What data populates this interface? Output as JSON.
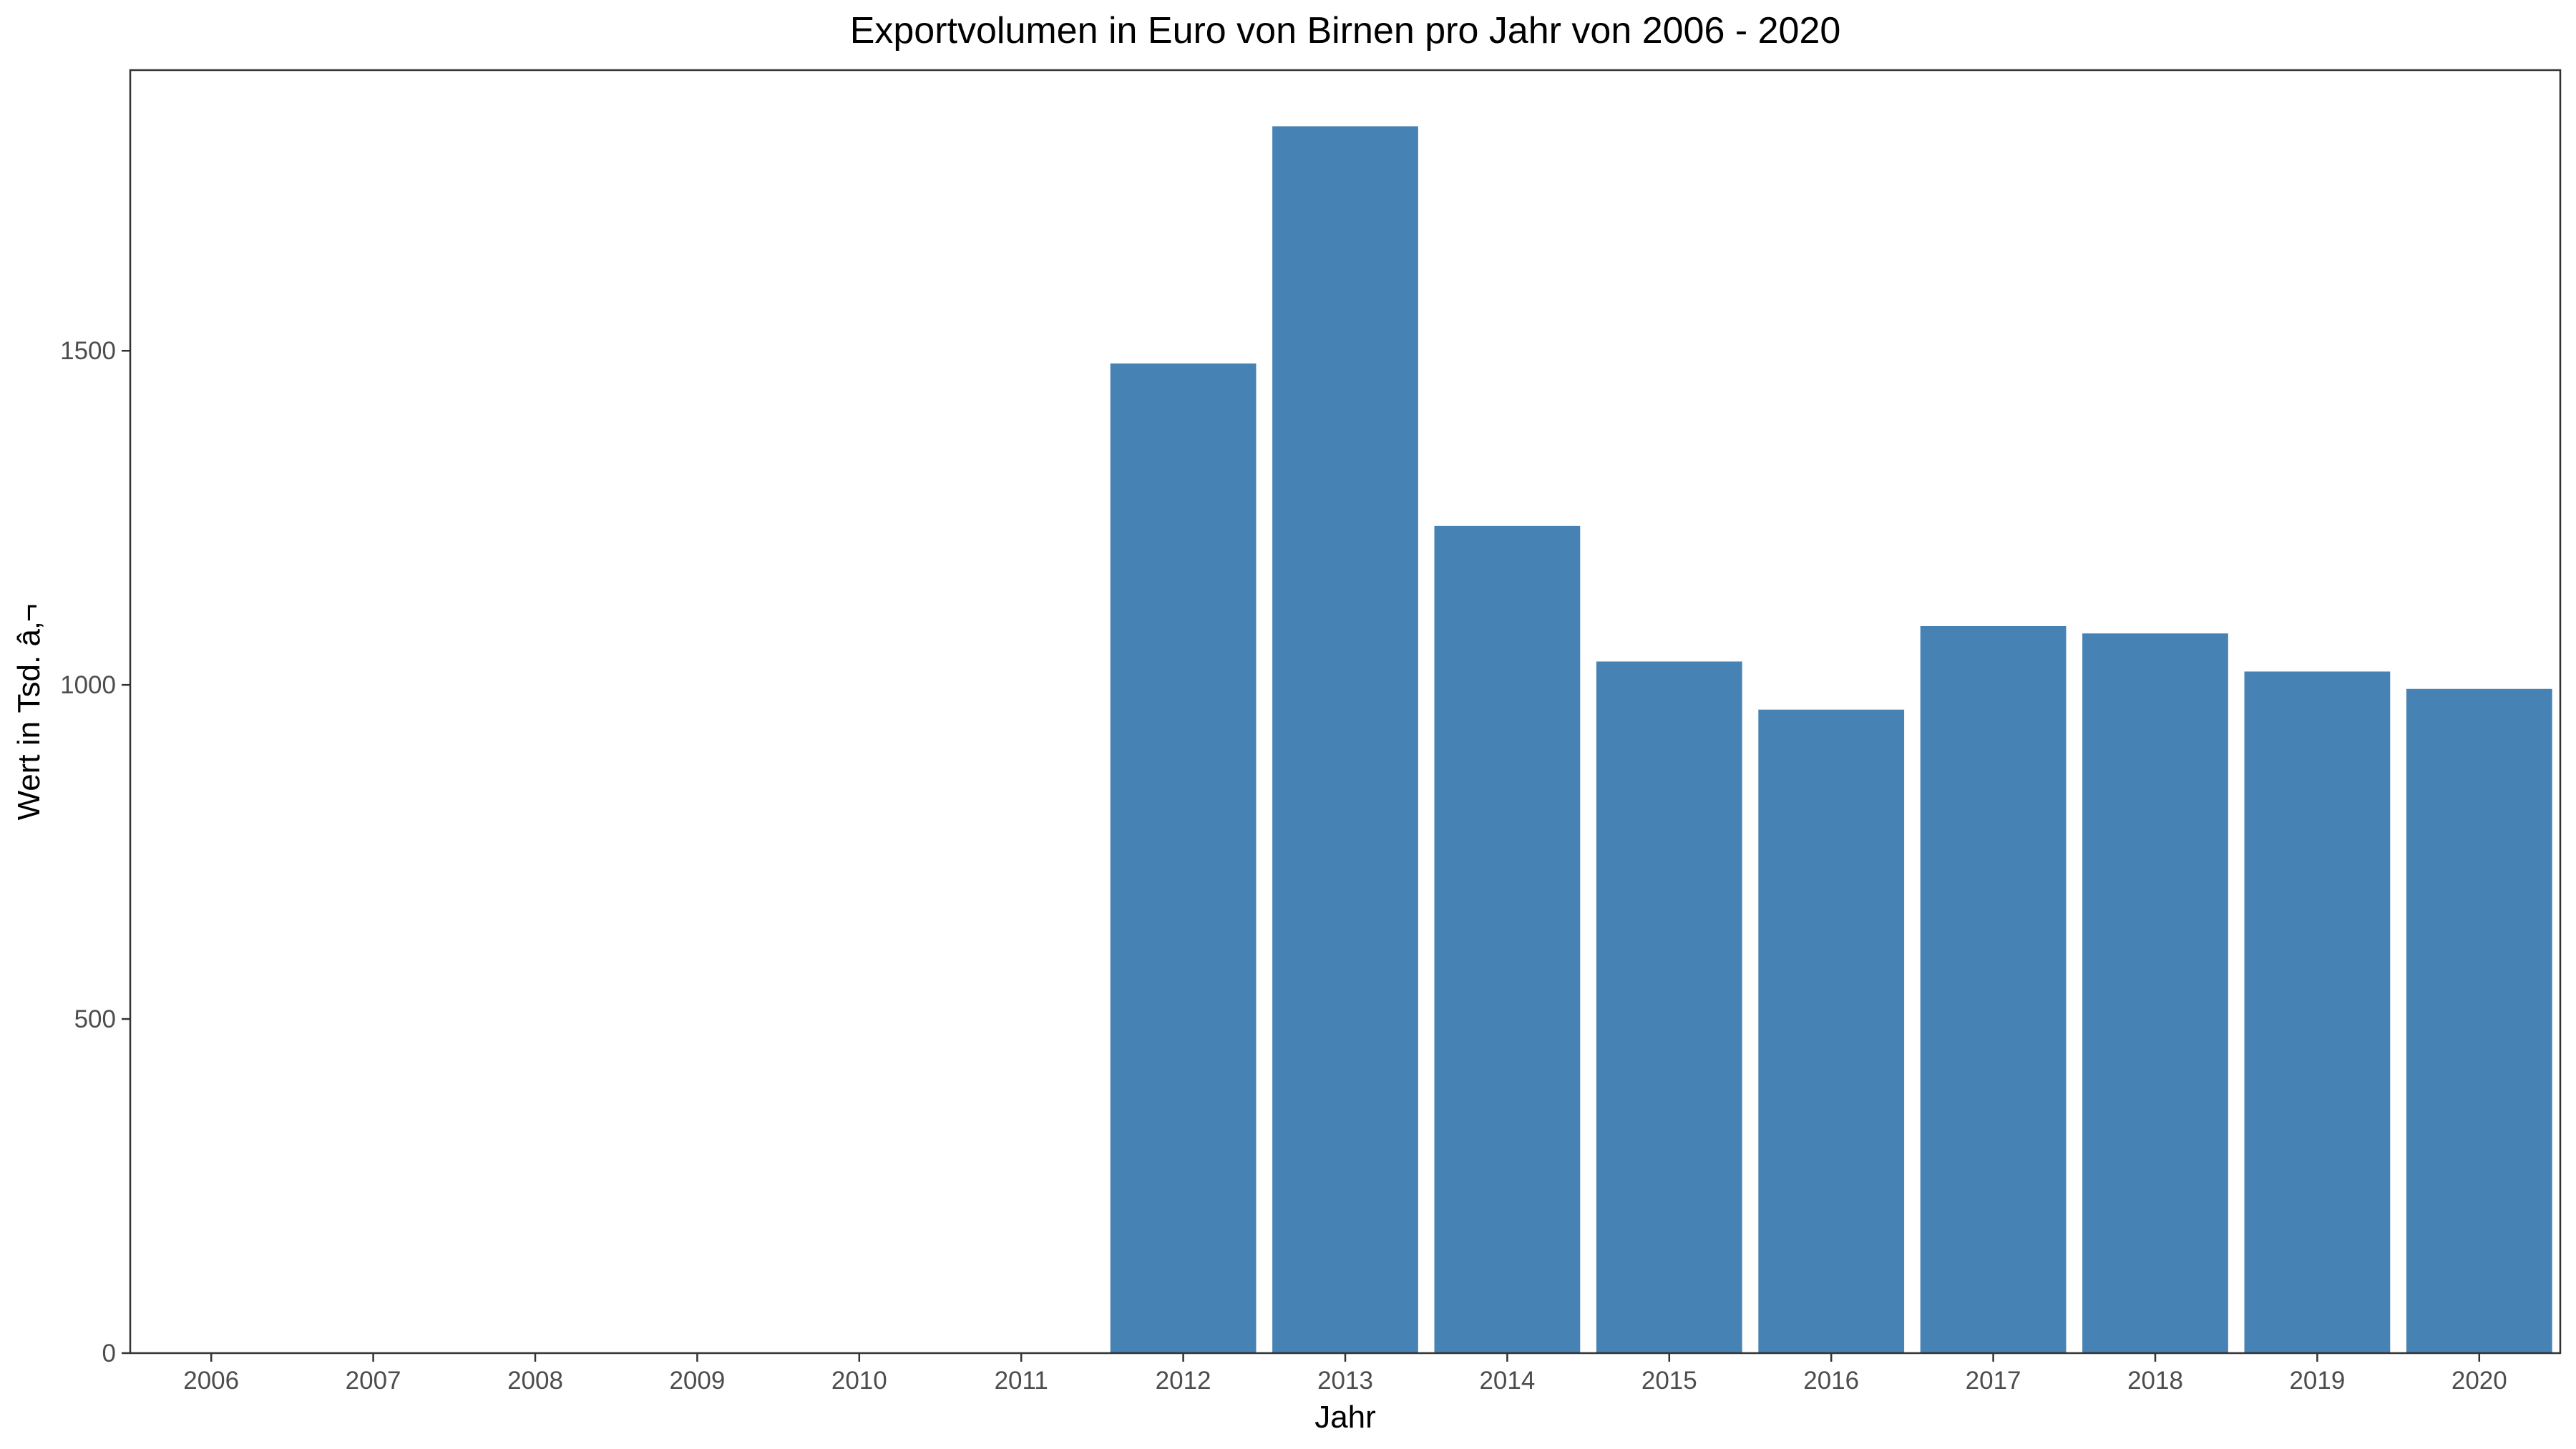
{
  "chart_data": {
    "type": "bar",
    "title": "Exportvolumen in Euro von Birnen pro Jahr von 2006 - 2020",
    "xlabel": "Jahr",
    "ylabel": "Wert in Tsd. â‚¬",
    "categories": [
      "2006",
      "2007",
      "2008",
      "2009",
      "2010",
      "2011",
      "2012",
      "2013",
      "2014",
      "2015",
      "2016",
      "2017",
      "2018",
      "2019",
      "2020"
    ],
    "values": [
      0,
      0,
      0,
      0,
      0,
      0,
      1481,
      1836,
      1238,
      1035,
      963,
      1088,
      1077,
      1020,
      994
    ],
    "ylim": [
      0,
      1920
    ],
    "yticks": [
      0,
      500,
      1000,
      1500
    ],
    "bar_color": "#4682B4",
    "grid": false,
    "legend": "none"
  }
}
